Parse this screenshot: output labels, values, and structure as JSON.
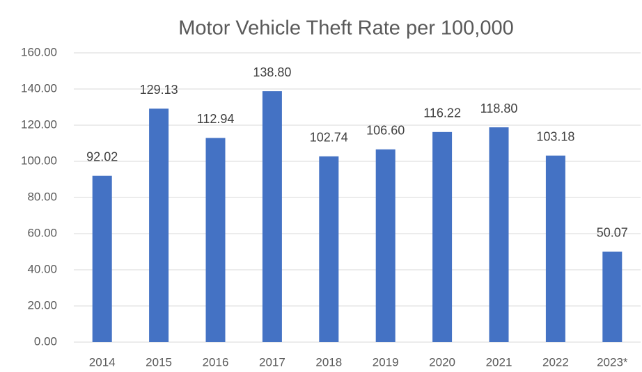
{
  "chart_data": {
    "type": "bar",
    "title": "Motor Vehicle Theft Rate per 100,000",
    "categories": [
      "2014",
      "2015",
      "2016",
      "2017",
      "2018",
      "2019",
      "2020",
      "2021",
      "2022",
      "2023*"
    ],
    "values": [
      92.02,
      129.13,
      112.94,
      138.8,
      102.74,
      106.6,
      116.22,
      118.8,
      103.18,
      50.07
    ],
    "value_labels": [
      "92.02",
      "129.13",
      "112.94",
      "138.80",
      "102.74",
      "106.60",
      "116.22",
      "118.80",
      "103.18",
      "50.07"
    ],
    "color": "#4472c4",
    "ylim": [
      0,
      160
    ],
    "yticks": [
      {
        "value": 0,
        "label": "0.00"
      },
      {
        "value": 20,
        "label": "20.00"
      },
      {
        "value": 40,
        "label": "40.00"
      },
      {
        "value": 60,
        "label": "60.00"
      },
      {
        "value": 80,
        "label": "80.00"
      },
      {
        "value": 100,
        "label": "100.00"
      },
      {
        "value": 120,
        "label": "120.00"
      },
      {
        "value": 140,
        "label": "140.00"
      },
      {
        "value": 160,
        "label": "160.00"
      }
    ],
    "grid": true
  }
}
